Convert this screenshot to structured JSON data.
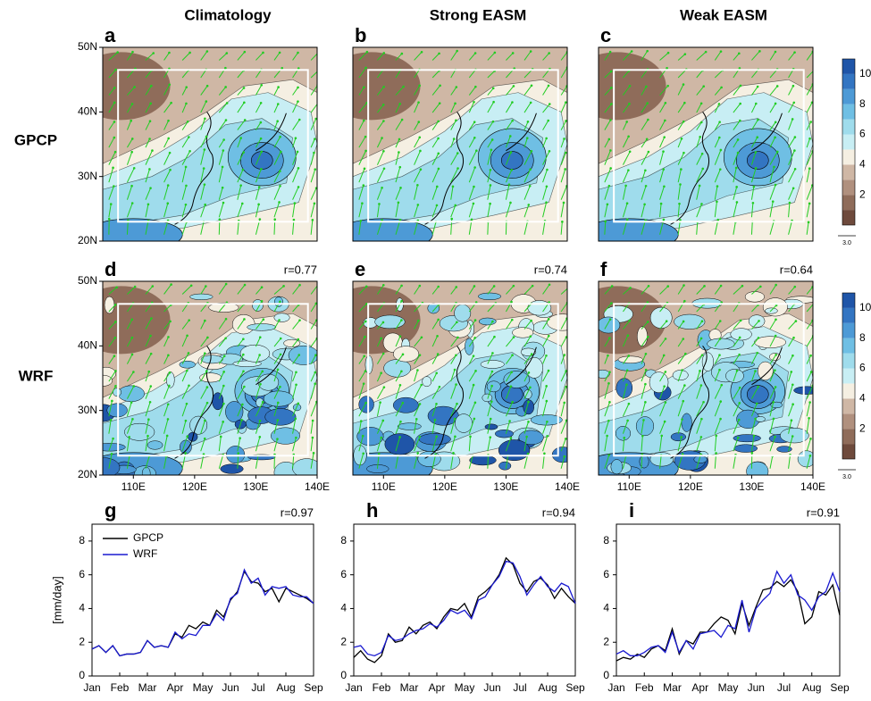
{
  "figure": {
    "columns": [
      "Climatology",
      "Strong EASM",
      "Weak EASM"
    ],
    "rows": [
      "GPCP",
      "WRF"
    ],
    "maps": [
      {
        "panel": "a"
      },
      {
        "panel": "b"
      },
      {
        "panel": "c"
      },
      {
        "panel": "d",
        "r": "r=0.77"
      },
      {
        "panel": "e",
        "r": "r=0.74"
      },
      {
        "panel": "f",
        "r": "r=0.64"
      }
    ],
    "lon_ticks": [
      {
        "value": 110,
        "label": "110E"
      },
      {
        "value": 120,
        "label": "120E"
      },
      {
        "value": 130,
        "label": "130E"
      },
      {
        "value": 140,
        "label": "140E"
      }
    ],
    "lat_ticks": [
      {
        "value": 20,
        "label": "20N"
      },
      {
        "value": 30,
        "label": "30N"
      },
      {
        "value": 40,
        "label": "40N"
      },
      {
        "value": 50,
        "label": "50N"
      }
    ],
    "colorbar": {
      "range": [
        0,
        11
      ],
      "ticks": [
        2,
        4,
        6,
        8,
        10
      ],
      "colors": [
        "#6e4a3c",
        "#8f6c5a",
        "#b0907e",
        "#cfb7a5",
        "#f5efe2",
        "#c8eef4",
        "#9fdcec",
        "#6fbfe4",
        "#4d9ad6",
        "#3375c2",
        "#1f55a8"
      ]
    },
    "vector_ref": "3.0"
  },
  "chart_data": [
    {
      "type": "line",
      "panel": "g",
      "annotation": "r=0.97",
      "ylabel": "[mm/day]",
      "x": [
        0,
        0.25,
        0.5,
        0.75,
        1,
        1.25,
        1.5,
        1.75,
        2,
        2.25,
        2.5,
        2.75,
        3,
        3.25,
        3.5,
        3.75,
        4,
        4.25,
        4.5,
        4.75,
        5,
        5.25,
        5.5,
        5.75,
        6,
        6.25,
        6.5,
        6.75,
        7,
        7.25,
        7.5,
        7.75,
        8
      ],
      "xlim": [
        0,
        8
      ],
      "xticks": [
        {
          "value": 0,
          "label": "Jan"
        },
        {
          "value": 1,
          "label": "Feb"
        },
        {
          "value": 2,
          "label": "Mar"
        },
        {
          "value": 3,
          "label": "Apr"
        },
        {
          "value": 4,
          "label": "May"
        },
        {
          "value": 5,
          "label": "Jun"
        },
        {
          "value": 6,
          "label": "Jul"
        },
        {
          "value": 7,
          "label": "Aug"
        },
        {
          "value": 8,
          "label": "Sep"
        }
      ],
      "ylim": [
        0,
        9
      ],
      "yticks": [
        0,
        2,
        4,
        6,
        8
      ],
      "series": [
        {
          "name": "GPCP",
          "color": "#000000",
          "values": [
            1.6,
            1.8,
            1.4,
            1.8,
            1.2,
            1.3,
            1.3,
            1.4,
            2.1,
            1.7,
            1.8,
            1.7,
            2.5,
            2.3,
            3.0,
            2.8,
            3.2,
            3.0,
            3.9,
            3.5,
            4.5,
            5.0,
            6.2,
            5.6,
            5.5,
            5.0,
            5.2,
            4.4,
            5.2,
            5.0,
            4.8,
            4.6,
            4.3
          ]
        },
        {
          "name": "WRF",
          "color": "#1a1ad0",
          "values": [
            1.6,
            1.8,
            1.4,
            1.8,
            1.2,
            1.3,
            1.3,
            1.4,
            2.1,
            1.7,
            1.8,
            1.7,
            2.6,
            2.2,
            2.5,
            2.4,
            3.0,
            3.0,
            3.7,
            3.3,
            4.6,
            4.9,
            6.3,
            5.5,
            5.8,
            4.8,
            5.3,
            5.2,
            5.3,
            4.8,
            4.7,
            4.7,
            4.3
          ]
        }
      ]
    },
    {
      "type": "line",
      "panel": "h",
      "annotation": "r=0.94",
      "x": [
        0,
        0.25,
        0.5,
        0.75,
        1,
        1.25,
        1.5,
        1.75,
        2,
        2.25,
        2.5,
        2.75,
        3,
        3.25,
        3.5,
        3.75,
        4,
        4.25,
        4.5,
        4.75,
        5,
        5.25,
        5.5,
        5.75,
        6,
        6.25,
        6.5,
        6.75,
        7,
        7.25,
        7.5,
        7.75,
        8
      ],
      "xlim": [
        0,
        8
      ],
      "xticks": [
        {
          "value": 0,
          "label": "Jan"
        },
        {
          "value": 1,
          "label": "Feb"
        },
        {
          "value": 2,
          "label": "Mar"
        },
        {
          "value": 3,
          "label": "Apr"
        },
        {
          "value": 4,
          "label": "May"
        },
        {
          "value": 5,
          "label": "Jun"
        },
        {
          "value": 6,
          "label": "Jul"
        },
        {
          "value": 7,
          "label": "Aug"
        },
        {
          "value": 8,
          "label": "Sep"
        }
      ],
      "ylim": [
        0,
        9
      ],
      "yticks": [
        0,
        2,
        4,
        6,
        8
      ],
      "series": [
        {
          "color": "#000000",
          "values": [
            1.1,
            1.5,
            1.0,
            0.8,
            1.2,
            2.5,
            2.0,
            2.1,
            2.9,
            2.5,
            3.0,
            3.2,
            2.8,
            3.5,
            4.0,
            3.9,
            4.3,
            3.5,
            4.7,
            5.0,
            5.4,
            6.0,
            7.0,
            6.6,
            5.5,
            5.0,
            5.6,
            5.8,
            5.4,
            4.6,
            5.2,
            4.7,
            4.3
          ]
        },
        {
          "color": "#1a1ad0",
          "values": [
            1.7,
            1.8,
            1.3,
            1.2,
            1.4,
            2.4,
            2.1,
            2.2,
            2.5,
            2.7,
            2.8,
            3.1,
            2.9,
            3.3,
            3.9,
            3.7,
            3.9,
            3.4,
            4.5,
            4.7,
            5.4,
            5.9,
            6.8,
            6.7,
            5.9,
            4.8,
            5.4,
            5.9,
            5.3,
            5.0,
            5.5,
            5.3,
            4.3
          ]
        }
      ]
    },
    {
      "type": "line",
      "panel": "i",
      "annotation": "r=0.91",
      "x": [
        0,
        0.25,
        0.5,
        0.75,
        1,
        1.25,
        1.5,
        1.75,
        2,
        2.25,
        2.5,
        2.75,
        3,
        3.25,
        3.5,
        3.75,
        4,
        4.25,
        4.5,
        4.75,
        5,
        5.25,
        5.5,
        5.75,
        6,
        6.25,
        6.5,
        6.75,
        7,
        7.25,
        7.5,
        7.75,
        8
      ],
      "xlim": [
        0,
        8
      ],
      "xticks": [
        {
          "value": 0,
          "label": "Jan"
        },
        {
          "value": 1,
          "label": "Feb"
        },
        {
          "value": 2,
          "label": "Mar"
        },
        {
          "value": 3,
          "label": "Apr"
        },
        {
          "value": 4,
          "label": "May"
        },
        {
          "value": 5,
          "label": "Jun"
        },
        {
          "value": 6,
          "label": "Jul"
        },
        {
          "value": 7,
          "label": "Aug"
        },
        {
          "value": 8,
          "label": "Sep"
        }
      ],
      "ylim": [
        0,
        9
      ],
      "yticks": [
        0,
        2,
        4,
        6,
        8
      ],
      "series": [
        {
          "color": "#000000",
          "values": [
            0.9,
            1.1,
            1.0,
            1.3,
            1.1,
            1.6,
            1.8,
            1.5,
            2.8,
            1.3,
            2.1,
            1.9,
            2.6,
            2.6,
            3.1,
            3.5,
            3.3,
            2.5,
            4.3,
            3.0,
            4.1,
            5.1,
            5.2,
            5.6,
            5.3,
            5.7,
            5.0,
            3.1,
            3.5,
            5.0,
            4.8,
            5.4,
            3.6
          ]
        },
        {
          "color": "#1a1ad0",
          "values": [
            1.3,
            1.5,
            1.2,
            1.2,
            1.4,
            1.7,
            1.8,
            1.4,
            2.6,
            1.4,
            2.1,
            1.6,
            2.5,
            2.6,
            2.7,
            2.3,
            3.0,
            2.8,
            4.5,
            2.6,
            4.0,
            4.5,
            4.9,
            6.2,
            5.5,
            6.0,
            4.8,
            4.5,
            3.9,
            4.7,
            5.0,
            6.1,
            5.0
          ]
        }
      ]
    }
  ]
}
